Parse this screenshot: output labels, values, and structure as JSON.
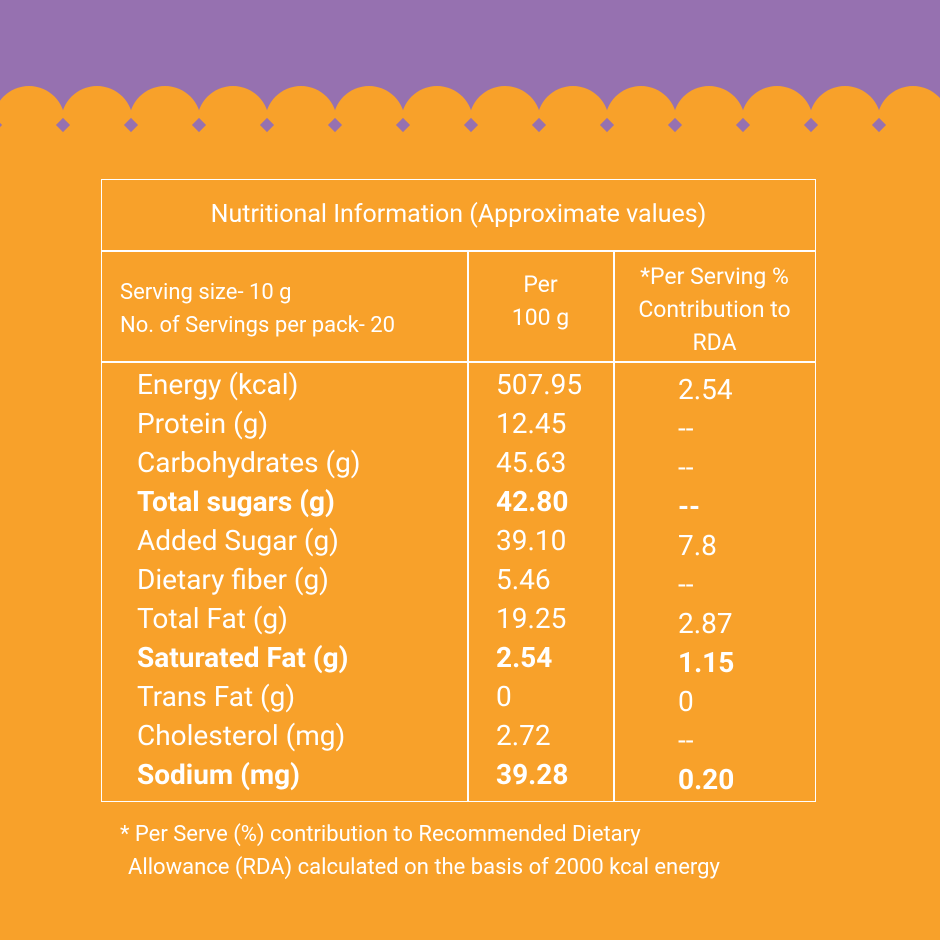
{
  "table": {
    "title": "Nutritional Information (Approximate values)",
    "header": [
      [
        "Serving size- 10 g",
        "No. of Servings per pack- 20"
      ],
      [
        "Per",
        "100 g"
      ],
      [
        "*Per Serving %",
        "Contribution to",
        "RDA"
      ]
    ],
    "rows": [
      {
        "name": "Energy (kcal)",
        "per_100g": "507.95",
        "rda": "2.54",
        "bold": false
      },
      {
        "name": "Protein (g)",
        "per_100g": "12.45",
        "rda": "--",
        "bold": false
      },
      {
        "name": "Carbohydrates (g)",
        "per_100g": "45.63",
        "rda": "--",
        "bold": false
      },
      {
        "name": "Total sugars (g)",
        "per_100g": "42.80",
        "rda": "--",
        "bold": true
      },
      {
        "name": "Added Sugar (g)",
        "per_100g": "39.10",
        "rda": "7.8",
        "bold": false
      },
      {
        "name": "Dietary fiber (g)",
        "per_100g": "5.46",
        "rda": "--",
        "bold": false
      },
      {
        "name": "Total Fat (g)",
        "per_100g": "19.25",
        "rda": "2.87",
        "bold": false
      },
      {
        "name": "Saturated Fat (g)",
        "per_100g": "2.54",
        "rda": "1.15",
        "bold": true
      },
      {
        "name": "Trans Fat (g)",
        "per_100g": "0",
        "rda": "0",
        "bold": false
      },
      {
        "name": "Cholesterol (mg)",
        "per_100g": "2.72",
        "rda": "--",
        "bold": false
      },
      {
        "name": "Sodium (mg)",
        "per_100g": "39.28",
        "rda": "0.20",
        "bold": true
      }
    ]
  },
  "footnote": [
    "* Per Serve (%) contribution to Recommended Dietary",
    "Allowance (RDA) calculated on the basis of 2000 kcal energy"
  ]
}
